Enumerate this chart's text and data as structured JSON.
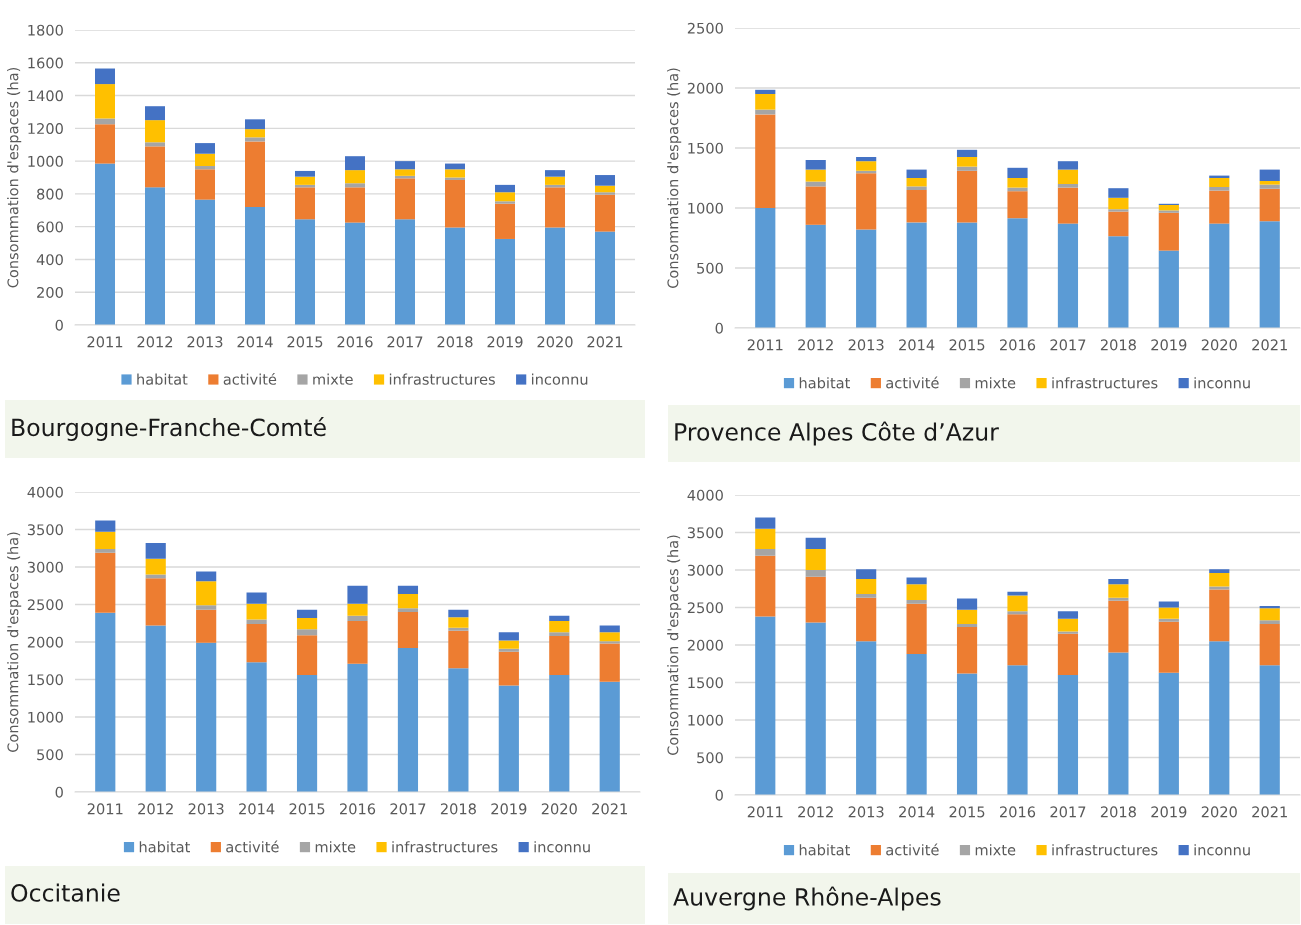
{
  "chart_data": [
    {
      "type": "bar",
      "title": "Bourgogne-Franche-Comté",
      "ylabel": "Consommation d'espaces (ha)",
      "stacked": true,
      "grid": "y",
      "legend": "bottom",
      "categories": [
        "2011",
        "2012",
        "2013",
        "2014",
        "2015",
        "2016",
        "2017",
        "2018",
        "2019",
        "2020",
        "2021"
      ],
      "ylim": [
        0,
        1800
      ],
      "yticks": [
        0,
        200,
        400,
        600,
        800,
        1000,
        1200,
        1400,
        1600,
        1800
      ],
      "series": [
        {
          "name": "habitat",
          "color": "#5b9bd5",
          "values": [
            985,
            840,
            765,
            720,
            645,
            625,
            645,
            595,
            525,
            595,
            570
          ]
        },
        {
          "name": "activité",
          "color": "#ed7d31",
          "values": [
            240,
            250,
            185,
            400,
            195,
            215,
            250,
            290,
            215,
            245,
            225
          ]
        },
        {
          "name": "mixte",
          "color": "#a5a5a5",
          "values": [
            35,
            25,
            20,
            25,
            15,
            25,
            15,
            15,
            15,
            15,
            15
          ]
        },
        {
          "name": "infrastructures",
          "color": "#ffc000",
          "values": [
            210,
            135,
            75,
            50,
            50,
            80,
            40,
            50,
            55,
            50,
            40
          ]
        },
        {
          "name": "inconnu",
          "color": "#4472c4",
          "values": [
            95,
            85,
            65,
            60,
            35,
            85,
            50,
            35,
            45,
            40,
            65
          ]
        }
      ]
    },
    {
      "type": "bar",
      "title": "Provence Alpes Côte d’Azur",
      "ylabel": "Consommation d'espaces (ha)",
      "stacked": true,
      "grid": "y",
      "legend": "bottom",
      "categories": [
        "2011",
        "2012",
        "2013",
        "2014",
        "2015",
        "2016",
        "2017",
        "2018",
        "2019",
        "2020",
        "2021"
      ],
      "ylim": [
        0,
        2500
      ],
      "yticks": [
        0,
        500,
        1000,
        1500,
        2000,
        2500
      ],
      "series": [
        {
          "name": "habitat",
          "color": "#5b9bd5",
          "values": [
            1000,
            860,
            820,
            880,
            880,
            915,
            870,
            765,
            645,
            870,
            890
          ]
        },
        {
          "name": "activité",
          "color": "#ed7d31",
          "values": [
            780,
            320,
            470,
            270,
            430,
            225,
            300,
            205,
            315,
            275,
            270
          ]
        },
        {
          "name": "mixte",
          "color": "#a5a5a5",
          "values": [
            40,
            40,
            20,
            30,
            35,
            30,
            30,
            20,
            20,
            30,
            35
          ]
        },
        {
          "name": "infrastructures",
          "color": "#ffc000",
          "values": [
            130,
            100,
            80,
            70,
            80,
            80,
            120,
            95,
            45,
            75,
            30
          ]
        },
        {
          "name": "inconnu",
          "color": "#4472c4",
          "values": [
            35,
            80,
            35,
            70,
            60,
            85,
            70,
            80,
            10,
            20,
            95
          ]
        }
      ]
    },
    {
      "type": "bar",
      "title": "Occitanie",
      "ylabel": "Consommation d'espaces (ha)",
      "stacked": true,
      "grid": "y",
      "legend": "bottom",
      "categories": [
        "2011",
        "2012",
        "2013",
        "2014",
        "2015",
        "2016",
        "2017",
        "2018",
        "2019",
        "2020",
        "2021"
      ],
      "ylim": [
        0,
        4000
      ],
      "yticks": [
        0,
        500,
        1000,
        1500,
        2000,
        2500,
        3000,
        3500,
        4000
      ],
      "series": [
        {
          "name": "habitat",
          "color": "#5b9bd5",
          "values": [
            2390,
            2220,
            1990,
            1730,
            1560,
            1710,
            1920,
            1650,
            1420,
            1560,
            1470
          ]
        },
        {
          "name": "activité",
          "color": "#ed7d31",
          "values": [
            800,
            630,
            440,
            510,
            530,
            570,
            480,
            500,
            450,
            520,
            510
          ]
        },
        {
          "name": "mixte",
          "color": "#a5a5a5",
          "values": [
            50,
            50,
            60,
            60,
            80,
            70,
            50,
            40,
            40,
            50,
            30
          ]
        },
        {
          "name": "infrastructures",
          "color": "#ffc000",
          "values": [
            230,
            210,
            320,
            210,
            150,
            160,
            190,
            140,
            110,
            150,
            120
          ]
        },
        {
          "name": "inconnu",
          "color": "#4472c4",
          "values": [
            150,
            210,
            130,
            150,
            110,
            240,
            110,
            100,
            110,
            70,
            90
          ]
        }
      ]
    },
    {
      "type": "bar",
      "title": "Auvergne Rhône-Alpes",
      "ylabel": "Consommation d'espaces (ha)",
      "stacked": true,
      "grid": "y",
      "legend": "bottom",
      "categories": [
        "2011",
        "2012",
        "2013",
        "2014",
        "2015",
        "2016",
        "2017",
        "2018",
        "2019",
        "2020",
        "2021"
      ],
      "ylim": [
        0,
        4000
      ],
      "yticks": [
        0,
        500,
        1000,
        1500,
        2000,
        2500,
        3000,
        3500,
        4000
      ],
      "series": [
        {
          "name": "habitat",
          "color": "#5b9bd5",
          "values": [
            2380,
            2300,
            2050,
            1880,
            1620,
            1730,
            1600,
            1900,
            1630,
            2050,
            1730
          ]
        },
        {
          "name": "activité",
          "color": "#ed7d31",
          "values": [
            810,
            610,
            580,
            670,
            620,
            680,
            550,
            690,
            680,
            690,
            550
          ]
        },
        {
          "name": "mixte",
          "color": "#a5a5a5",
          "values": [
            90,
            90,
            50,
            50,
            40,
            40,
            30,
            40,
            40,
            40,
            50
          ]
        },
        {
          "name": "infrastructures",
          "color": "#ffc000",
          "values": [
            270,
            280,
            200,
            210,
            190,
            210,
            170,
            180,
            150,
            180,
            160
          ]
        },
        {
          "name": "inconnu",
          "color": "#4472c4",
          "values": [
            150,
            150,
            130,
            90,
            150,
            50,
            100,
            70,
            80,
            50,
            30
          ]
        }
      ]
    }
  ]
}
